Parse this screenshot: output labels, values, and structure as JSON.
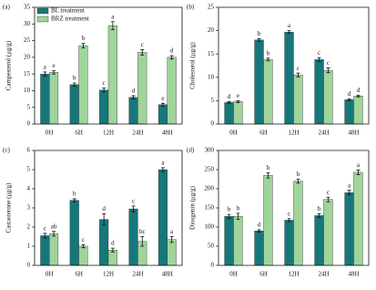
{
  "chart_data": [
    {
      "type": "bar",
      "title": "(a)",
      "ylabel": "Campesterol (μg/g)",
      "legend": "upper left",
      "categories": [
        "0H",
        "6H",
        "12H",
        "24H",
        "48H"
      ],
      "series": [
        {
          "name": "BL  treatment",
          "color": "#16777a",
          "values": [
            15,
            11.8,
            10.2,
            8,
            5.8
          ],
          "errors": [
            0.6,
            0.5,
            0.6,
            0.5,
            0.4
          ],
          "letters": [
            "a",
            "b",
            "c",
            "d",
            "e"
          ]
        },
        {
          "name": "BRZ treatment",
          "color": "#9fd49b",
          "values": [
            15.5,
            23.5,
            29.5,
            21.5,
            20
          ],
          "errors": [
            0.5,
            0.7,
            1.2,
            0.8,
            0.5
          ],
          "letters": [
            "e",
            "b",
            "a",
            "c",
            "d"
          ]
        }
      ],
      "ylim": [
        0,
        35
      ],
      "yticks": [
        0,
        5,
        10,
        15,
        20,
        25,
        30,
        35
      ]
    },
    {
      "type": "bar",
      "title": "(b)",
      "ylabel": "Cholesterol (μg/g)",
      "categories": [
        "0H",
        "6H",
        "12H",
        "24H",
        "48H"
      ],
      "series": [
        {
          "color": "#16777a",
          "values": [
            4.6,
            18,
            19.7,
            13.8,
            5.2
          ],
          "errors": [
            0.2,
            0.3,
            0.3,
            0.4,
            0.2
          ],
          "letters": [
            "d",
            "b",
            "a",
            "c",
            "d"
          ]
        },
        {
          "color": "#9fd49b",
          "values": [
            4.8,
            13.8,
            10.5,
            11.5,
            6
          ],
          "errors": [
            0.2,
            0.3,
            0.4,
            0.5,
            0.2
          ],
          "letters": [
            "e",
            "b",
            "c",
            "c",
            "d"
          ]
        }
      ],
      "ylim": [
        0,
        25
      ],
      "yticks": [
        0,
        5,
        10,
        15,
        20,
        25
      ]
    },
    {
      "type": "bar",
      "title": "(c)",
      "ylabel": "Castasterone (μg/g)",
      "categories": [
        "0H",
        "6H",
        "12H",
        "24H",
        "48H"
      ],
      "series": [
        {
          "color": "#16777a",
          "values": [
            1.55,
            3.4,
            2.4,
            2.95,
            5
          ],
          "errors": [
            0.12,
            0.08,
            0.3,
            0.15,
            0.1
          ],
          "letters": [
            "c",
            "b",
            "d",
            "c",
            "a"
          ]
        },
        {
          "color": "#9fd49b",
          "values": [
            1.65,
            1,
            0.8,
            1.25,
            1.35
          ],
          "errors": [
            0.12,
            0.08,
            0.1,
            0.25,
            0.15
          ],
          "letters": [
            "ab",
            "c",
            "d",
            "bc",
            "a"
          ]
        }
      ],
      "ylim": [
        0,
        6
      ],
      "yticks": [
        0,
        1,
        2,
        3,
        4,
        5,
        6
      ]
    },
    {
      "type": "bar",
      "title": "(d)",
      "ylabel": "Diosgenin (μg/g)",
      "categories": [
        "0H",
        "6H",
        "12H",
        "24H",
        "48H"
      ],
      "series": [
        {
          "color": "#16777a",
          "values": [
            128,
            90,
            118,
            130,
            190
          ],
          "errors": [
            5,
            3,
            4,
            5,
            6
          ],
          "letters": [
            "b",
            "d",
            "c",
            "b",
            "a"
          ]
        },
        {
          "color": "#9fd49b",
          "values": [
            128,
            235,
            220,
            172,
            243
          ],
          "errors": [
            8,
            7,
            5,
            6,
            6
          ],
          "letters": [
            "b",
            "b",
            "b",
            "c",
            "a"
          ]
        }
      ],
      "ylim": [
        0,
        300
      ],
      "yticks": [
        0,
        50,
        100,
        150,
        200,
        250,
        300
      ]
    }
  ]
}
